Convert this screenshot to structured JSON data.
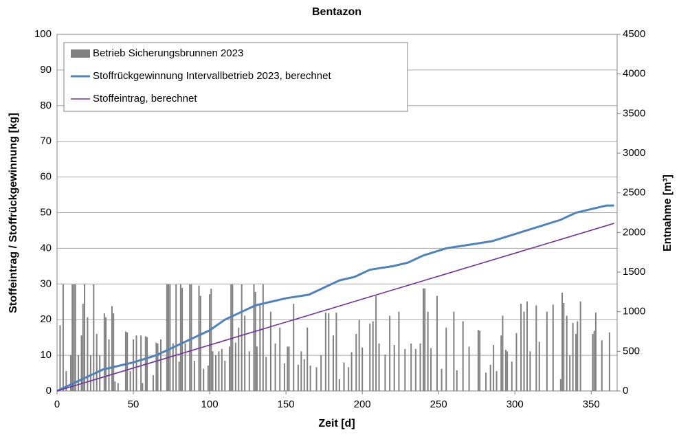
{
  "chart_data": {
    "type": "combo",
    "title": "Bentazon",
    "x_label": "Zeit [d]",
    "y_label": "Stoffeintrag / Stoffrückgewinnung [kg]",
    "y2_label": "Entnahme [m³]",
    "xlim": [
      0,
      367
    ],
    "xticks": [
      0,
      50,
      100,
      150,
      200,
      250,
      300,
      350
    ],
    "ylim": [
      0,
      100
    ],
    "yticks": [
      0,
      10,
      20,
      30,
      40,
      50,
      60,
      70,
      80,
      90,
      100
    ],
    "y2lim": [
      0,
      4500
    ],
    "y2ticks": [
      0,
      500,
      1000,
      1500,
      2000,
      2500,
      3000,
      3500,
      4000,
      4500
    ],
    "grid": true,
    "legend": "top-left",
    "series": [
      {
        "name": "Betrieb Sicherungsbrunnen 2023",
        "type": "bar",
        "axis": "y2",
        "color": "#808080",
        "x": [
          2,
          4,
          6,
          9,
          10,
          11,
          12,
          14,
          16,
          17,
          18,
          20,
          22,
          24,
          26,
          28,
          31,
          32,
          34,
          36,
          37,
          38,
          40,
          45,
          46,
          48,
          50,
          52,
          55,
          56,
          58,
          59,
          63,
          65,
          66,
          68,
          72,
          73,
          74,
          76,
          78,
          80,
          81,
          82,
          84,
          87,
          88,
          90,
          93,
          94,
          96,
          99,
          100,
          101,
          102,
          104,
          106,
          108,
          110,
          113,
          114,
          115,
          117,
          119,
          121,
          123,
          126,
          129,
          130,
          131,
          133,
          135,
          137,
          140,
          143,
          146,
          149,
          151,
          152,
          155,
          158,
          160,
          162,
          164,
          166,
          170,
          173,
          176,
          178,
          181,
          183,
          185,
          188,
          191,
          193,
          196,
          198,
          200,
          205,
          207,
          209,
          211,
          215,
          218,
          221,
          224,
          228,
          232,
          235,
          238,
          240,
          241,
          243,
          245,
          249,
          252,
          255,
          260,
          262,
          266,
          270,
          276,
          277,
          281,
          284,
          286,
          288,
          291,
          292,
          294,
          295,
          298,
          301,
          304,
          306,
          308,
          310,
          314,
          316,
          321,
          325,
          330,
          331,
          332,
          334,
          336,
          338,
          340,
          341,
          343,
          351,
          352,
          353,
          357,
          362
        ],
        "values": [
          830,
          1345,
          250,
          450,
          1345,
          1345,
          1345,
          450,
          700,
          1100,
          1345,
          930,
          450,
          1345,
          720,
          450,
          980,
          930,
          650,
          1070,
          980,
          120,
          100,
          750,
          740,
          250,
          650,
          700,
          700,
          100,
          690,
          680,
          200,
          610,
          600,
          650,
          1345,
          1345,
          1345,
          600,
          1345,
          370,
          1345,
          1300,
          600,
          1345,
          1345,
          380,
          1330,
          1200,
          280,
          320,
          1220,
          1290,
          500,
          450,
          500,
          530,
          380,
          560,
          1345,
          1345,
          610,
          800,
          1345,
          950,
          500,
          1345,
          1250,
          560,
          1090,
          1345,
          430,
          1000,
          600,
          800,
          350,
          560,
          560,
          1100,
          330,
          500,
          400,
          800,
          320,
          300,
          450,
          990,
          980,
          700,
          990,
          150,
          360,
          300,
          490,
          720,
          900,
          550,
          850,
          880,
          1200,
          600,
          460,
          950,
          580,
          1000,
          530,
          600,
          530,
          600,
          1295,
          1295,
          1000,
          540,
          1200,
          280,
          800,
          1000,
          260,
          880,
          560,
          770,
          760,
          230,
          330,
          580,
          250,
          700,
          950,
          520,
          500,
          370,
          730,
          1100,
          1000,
          1130,
          500,
          1080,
          620,
          1000,
          1090,
          150,
          1240,
          1110,
          950,
          450,
          860,
          720,
          880,
          1130,
          720,
          760,
          990,
          640,
          740
        ]
      },
      {
        "name": "Stoffrückgewinnung Intervallbetrieb 2023, berechnet",
        "type": "line",
        "color": "#4f81bd",
        "x": [
          0,
          10,
          20,
          30,
          50,
          65,
          80,
          90,
          100,
          110,
          120,
          130,
          140,
          150,
          165,
          175,
          185,
          195,
          205,
          220,
          230,
          240,
          255,
          270,
          285,
          300,
          315,
          330,
          340,
          350,
          360,
          365
        ],
        "values": [
          0,
          2,
          4,
          6,
          8,
          10,
          13,
          15,
          17,
          20,
          22,
          24,
          25,
          26,
          27,
          29,
          31,
          32,
          34,
          35,
          36,
          38,
          40,
          41,
          42,
          44,
          46,
          48,
          50,
          51,
          52,
          52
        ]
      },
      {
        "name": "Stoffeintrag, berechnet",
        "type": "line",
        "color": "#7030a0",
        "x": [
          0,
          365
        ],
        "values": [
          0,
          47
        ]
      }
    ]
  }
}
